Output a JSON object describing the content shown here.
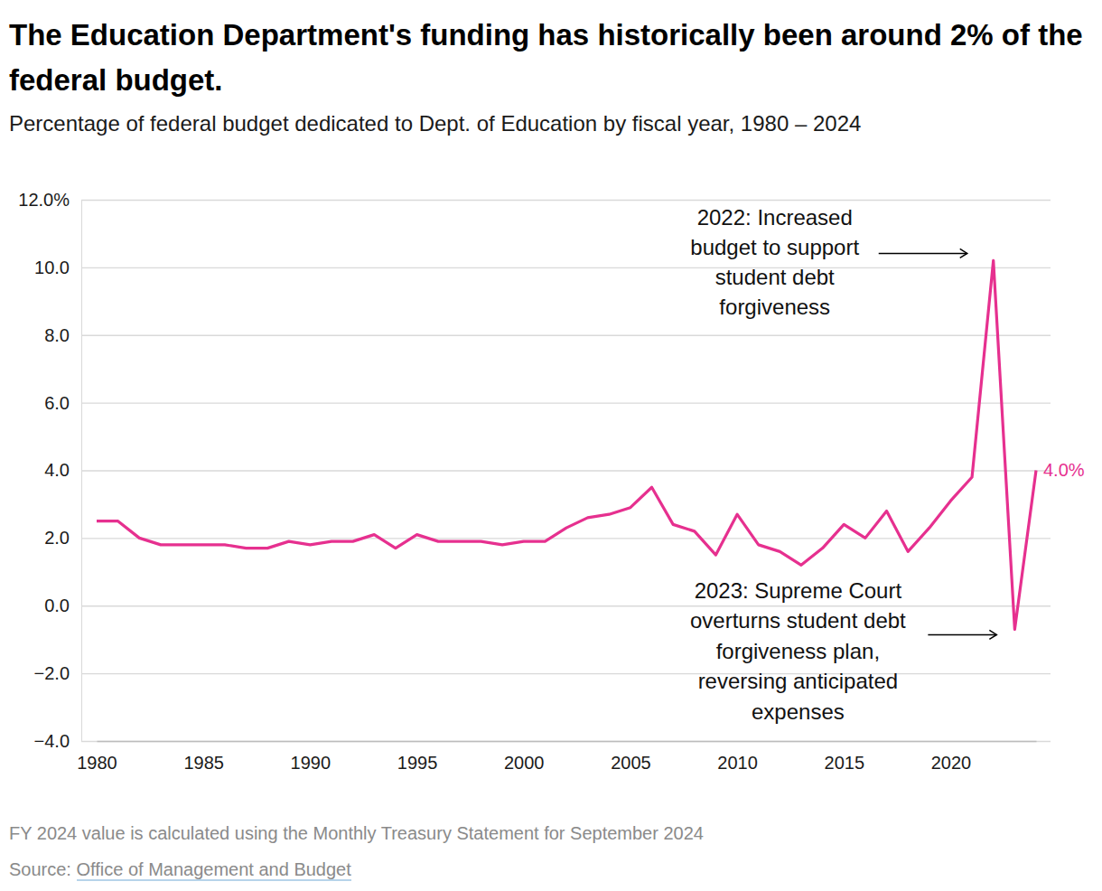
{
  "chart_data": {
    "type": "line",
    "title": "The Education Department's funding has historically been around 2% of the federal budget.",
    "subtitle": "Percentage of federal budget dedicated to Dept. of Education by fiscal year, 1980 – 2024",
    "x": [
      1980,
      1981,
      1982,
      1983,
      1984,
      1985,
      1986,
      1987,
      1988,
      1989,
      1990,
      1991,
      1992,
      1993,
      1994,
      1995,
      1996,
      1997,
      1998,
      1999,
      2000,
      2001,
      2002,
      2003,
      2004,
      2005,
      2006,
      2007,
      2008,
      2009,
      2010,
      2011,
      2012,
      2013,
      2014,
      2015,
      2016,
      2017,
      2018,
      2019,
      2020,
      2021,
      2022,
      2023,
      2024
    ],
    "values": [
      2.5,
      2.5,
      2.0,
      1.8,
      1.8,
      1.8,
      1.8,
      1.7,
      1.7,
      1.9,
      1.8,
      1.9,
      1.9,
      2.1,
      1.7,
      2.1,
      1.9,
      1.9,
      1.9,
      1.8,
      1.9,
      1.9,
      2.3,
      2.6,
      2.7,
      2.9,
      3.5,
      2.4,
      2.2,
      1.5,
      2.7,
      1.8,
      1.6,
      1.2,
      1.7,
      2.4,
      2.0,
      2.8,
      1.6,
      2.3,
      3.1,
      3.8,
      10.2,
      -0.7,
      4.0
    ],
    "value_labels": [
      null,
      null,
      null,
      null,
      null,
      null,
      null,
      null,
      null,
      null,
      null,
      null,
      null,
      null,
      null,
      null,
      null,
      null,
      null,
      null,
      null,
      null,
      null,
      null,
      null,
      null,
      null,
      null,
      null,
      null,
      null,
      null,
      null,
      null,
      null,
      null,
      null,
      null,
      null,
      null,
      null,
      null,
      null,
      null,
      "4.0%"
    ],
    "color": "#e6308f",
    "xlim": [
      1980,
      2024
    ],
    "xticks": [
      1980,
      1985,
      1990,
      1995,
      2000,
      2005,
      2010,
      2015,
      2020
    ],
    "ylim": [
      -4,
      12
    ],
    "yticks": [
      {
        "value": -4,
        "label": "−4.0"
      },
      {
        "value": -2,
        "label": "−2.0"
      },
      {
        "value": 0,
        "label": "0.0"
      },
      {
        "value": 2,
        "label": "2.0"
      },
      {
        "value": 4,
        "label": "4.0"
      },
      {
        "value": 6,
        "label": "6.0"
      },
      {
        "value": 8,
        "label": "8.0"
      },
      {
        "value": 10,
        "label": "10.0"
      },
      {
        "value": 12,
        "label": "12.0%"
      }
    ],
    "grid": true,
    "annotations": [
      {
        "x": 2022,
        "text": [
          "2022: Increased",
          "budget to support",
          "student debt",
          "forgiveness"
        ]
      },
      {
        "x": 2023,
        "text": [
          "2023: Supreme Court",
          "overturns student debt",
          "forgiveness plan,",
          "reversing anticipated",
          "expenses"
        ]
      }
    ],
    "note": "FY 2024 value is calculated using the Monthly Treasury Statement for September 2024",
    "source_label": "Source:",
    "source": "Office of Management and Budget"
  }
}
